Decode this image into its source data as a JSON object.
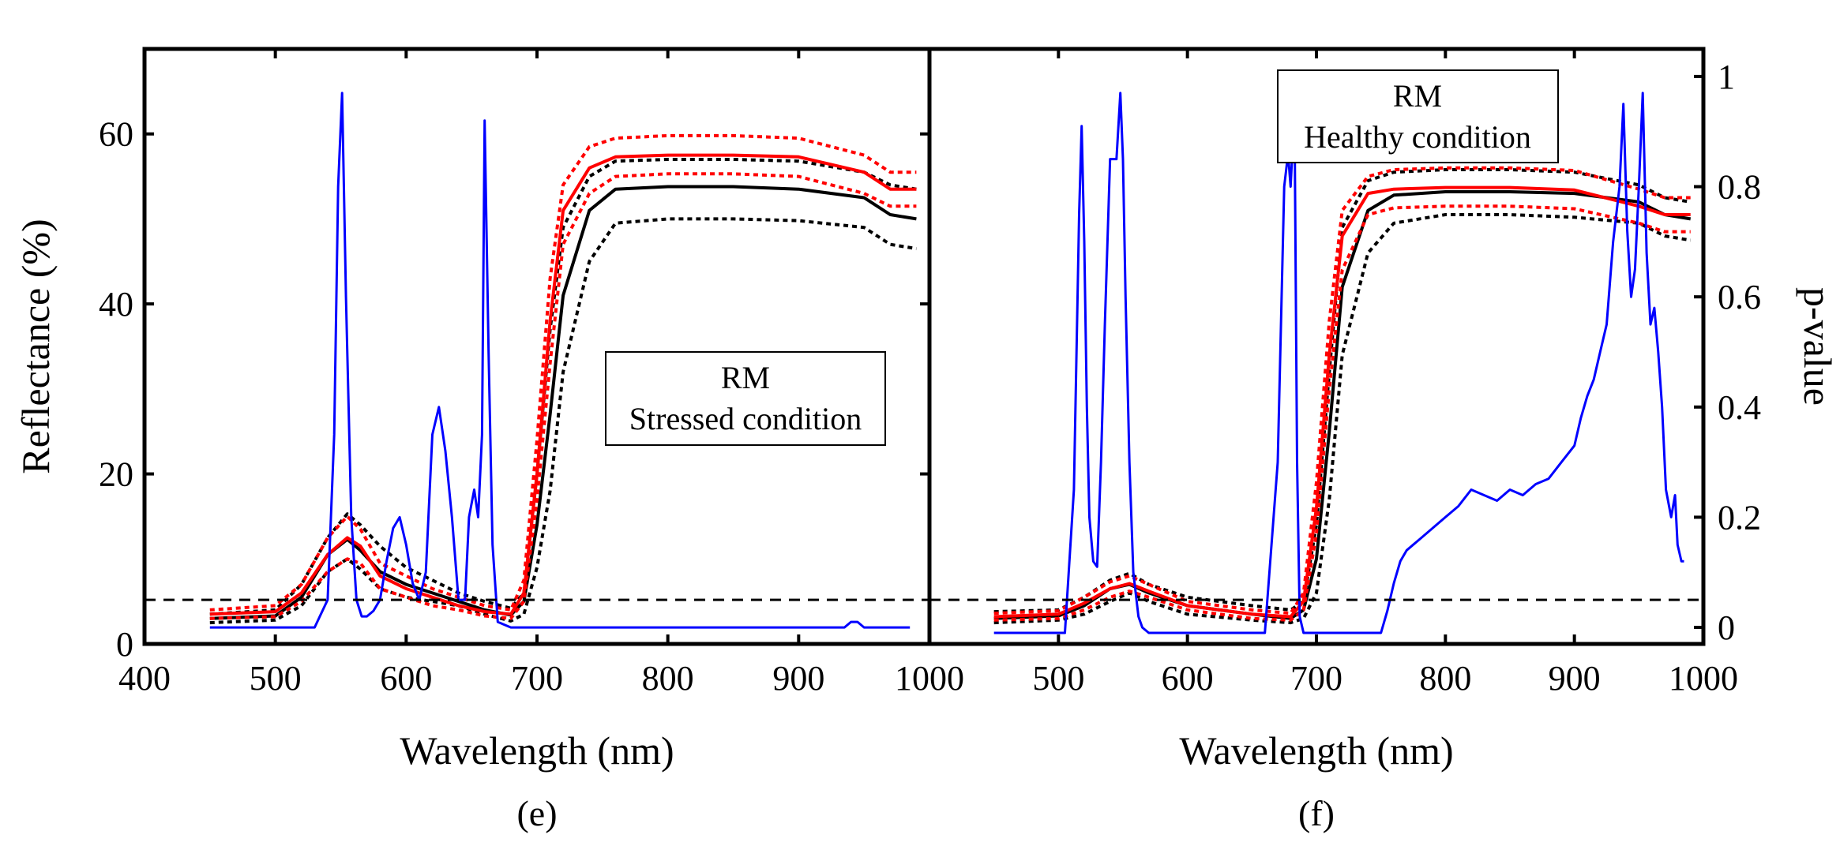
{
  "chart_data": [
    {
      "type": "line",
      "panel_label": "(e)",
      "xlabel": "Wavelength (nm)",
      "ylabel": "Reflectance (%)",
      "xlim": [
        400,
        1000
      ],
      "ylim": [
        0,
        70
      ],
      "xticks": [
        "400",
        "500",
        "600",
        "700",
        "800",
        "900",
        "1000"
      ],
      "yticks": [
        "0",
        "20",
        "40",
        "60"
      ],
      "y2label": "p-value",
      "y2lim": [
        -0.03,
        1.05
      ],
      "y2ticks": [
        "0",
        "0.2",
        "0.4",
        "0.6",
        "0.8",
        "1"
      ],
      "legend_box": [
        "RM",
        "Stressed condition"
      ],
      "threshold_pvalue": 0.05,
      "series": [
        {
          "color": "#000000",
          "style": "solid",
          "axis": "left",
          "x": [
            450,
            500,
            520,
            540,
            555,
            565,
            580,
            600,
            620,
            640,
            660,
            680,
            690,
            700,
            710,
            720,
            740,
            760,
            800,
            850,
            900,
            950,
            970,
            990
          ],
          "y": [
            3,
            3.3,
            5.5,
            10.5,
            12.3,
            11,
            8.5,
            7,
            6,
            5,
            4,
            3.4,
            5,
            14,
            27,
            41,
            51,
            53.5,
            53.8,
            53.8,
            53.5,
            52.5,
            50.5,
            50
          ]
        },
        {
          "color": "#000000",
          "style": "dotted",
          "axis": "left",
          "x": [
            450,
            500,
            520,
            540,
            555,
            565,
            580,
            600,
            620,
            640,
            660,
            680,
            690,
            700,
            710,
            720,
            740,
            760,
            800,
            850,
            900,
            950,
            970,
            990
          ],
          "y": [
            3.5,
            4,
            7,
            12.5,
            15.3,
            14,
            11.5,
            9,
            7.5,
            6,
            5,
            4.2,
            6,
            20,
            37,
            49,
            55,
            56.8,
            57,
            57,
            56.8,
            55.5,
            54,
            53.5
          ]
        },
        {
          "color": "#000000",
          "style": "dotted",
          "axis": "left",
          "x": [
            450,
            500,
            520,
            540,
            555,
            565,
            580,
            600,
            620,
            640,
            660,
            680,
            690,
            700,
            710,
            720,
            740,
            760,
            800,
            850,
            900,
            950,
            970,
            990
          ],
          "y": [
            2.5,
            2.8,
            4.5,
            8.5,
            10,
            8.8,
            6.5,
            5.5,
            5,
            4.5,
            3.5,
            2.7,
            3.5,
            9,
            18,
            32,
            45,
            49.5,
            50,
            50,
            49.8,
            49,
            47,
            46.5
          ]
        },
        {
          "color": "#ff0000",
          "style": "solid",
          "axis": "left",
          "x": [
            450,
            500,
            520,
            540,
            555,
            565,
            580,
            600,
            620,
            640,
            660,
            680,
            690,
            700,
            710,
            720,
            740,
            760,
            800,
            850,
            900,
            950,
            970,
            990
          ],
          "y": [
            3.5,
            3.8,
            6,
            10.5,
            12.5,
            11.5,
            8,
            6.5,
            5.5,
            4.5,
            3.8,
            3.5,
            6,
            20,
            38,
            51,
            56,
            57.3,
            57.5,
            57.5,
            57.3,
            55.5,
            53.5,
            53.5
          ]
        },
        {
          "color": "#ff0000",
          "style": "dotted",
          "axis": "left",
          "x": [
            450,
            500,
            520,
            540,
            555,
            565,
            580,
            600,
            620,
            640,
            660,
            680,
            690,
            700,
            710,
            720,
            740,
            760,
            800,
            850,
            900,
            950,
            970,
            990
          ],
          "y": [
            4,
            4.5,
            7,
            12.5,
            15,
            13.5,
            9.5,
            8,
            6.5,
            5.5,
            4.5,
            4,
            7.5,
            24,
            43,
            54,
            58.5,
            59.5,
            59.8,
            59.8,
            59.5,
            57.5,
            55.5,
            55.5
          ]
        },
        {
          "color": "#ff0000",
          "style": "dotted",
          "axis": "left",
          "x": [
            450,
            500,
            520,
            540,
            555,
            565,
            580,
            600,
            620,
            640,
            660,
            680,
            690,
            700,
            710,
            720,
            740,
            760,
            800,
            850,
            900,
            950,
            970,
            990
          ],
          "y": [
            3,
            3.2,
            5,
            8.5,
            10,
            9.5,
            6.5,
            5.5,
            4.5,
            4,
            3.3,
            3,
            5,
            17,
            33,
            47,
            53,
            55,
            55.3,
            55.3,
            55,
            53,
            51.5,
            51.5
          ]
        },
        {
          "color": "#0000ff",
          "style": "solid",
          "axis": "right",
          "x": [
            450,
            530,
            540,
            545,
            548,
            551,
            554,
            558,
            562,
            566,
            570,
            575,
            580,
            585,
            590,
            595,
            600,
            605,
            610,
            615,
            620,
            625,
            630,
            635,
            640,
            645,
            648,
            652,
            655,
            658,
            660,
            663,
            666,
            670,
            680,
            700,
            800,
            900,
            935,
            940,
            945,
            950,
            960,
            985
          ],
          "y": [
            0,
            0,
            0.05,
            0.35,
            0.8,
            0.97,
            0.6,
            0.2,
            0.05,
            0.02,
            0.02,
            0.03,
            0.05,
            0.12,
            0.18,
            0.2,
            0.15,
            0.08,
            0.05,
            0.1,
            0.35,
            0.4,
            0.32,
            0.2,
            0.05,
            0.05,
            0.2,
            0.25,
            0.2,
            0.35,
            0.92,
            0.5,
            0.15,
            0.01,
            0,
            0,
            0,
            0,
            0,
            0.01,
            0.01,
            0,
            0,
            0
          ]
        }
      ]
    },
    {
      "type": "line",
      "panel_label": "(f)",
      "xlabel": "Wavelength (nm)",
      "ylabel": "Reflectance (%)",
      "xlim": [
        400,
        1000
      ],
      "ylim": [
        0,
        70
      ],
      "xticks": [
        "500",
        "600",
        "700",
        "800",
        "900",
        "1000"
      ],
      "y2label": "p-value",
      "y2lim": [
        -0.03,
        1.05
      ],
      "y2ticks": [
        "0",
        "0.2",
        "0.4",
        "0.6",
        "0.8",
        "1"
      ],
      "legend_box": [
        "RM",
        "Healthy condition"
      ],
      "threshold_pvalue": 0.05,
      "series": [
        {
          "color": "#000000",
          "style": "solid",
          "axis": "left",
          "x": [
            450,
            500,
            520,
            540,
            555,
            570,
            600,
            650,
            680,
            690,
            700,
            710,
            720,
            740,
            760,
            800,
            850,
            900,
            950,
            970,
            990
          ],
          "y": [
            3,
            3.3,
            4.5,
            6.5,
            7,
            6,
            4.5,
            3.5,
            3,
            4,
            10,
            25,
            42,
            51,
            52.8,
            53.2,
            53.2,
            53,
            52,
            50.5,
            50
          ]
        },
        {
          "color": "#000000",
          "style": "dotted",
          "axis": "left",
          "x": [
            450,
            500,
            520,
            540,
            555,
            570,
            600,
            650,
            680,
            690,
            700,
            710,
            720,
            740,
            760,
            800,
            850,
            900,
            950,
            970,
            990
          ],
          "y": [
            3.8,
            4,
            5.5,
            7.5,
            8.3,
            7,
            5.5,
            4.5,
            4,
            5,
            14,
            32,
            49,
            54.5,
            55.5,
            55.8,
            55.8,
            55.5,
            54,
            52.5,
            52
          ]
        },
        {
          "color": "#000000",
          "style": "dotted",
          "axis": "left",
          "x": [
            450,
            500,
            520,
            540,
            555,
            570,
            600,
            650,
            680,
            690,
            700,
            710,
            720,
            740,
            760,
            800,
            850,
            900,
            950,
            970,
            990
          ],
          "y": [
            2.5,
            2.8,
            3.5,
            5,
            6,
            5,
            3.5,
            2.8,
            2.5,
            3,
            6,
            17,
            34,
            46,
            49.5,
            50.5,
            50.5,
            50.2,
            49.5,
            48,
            47.5
          ]
        },
        {
          "color": "#ff0000",
          "style": "solid",
          "axis": "left",
          "x": [
            450,
            500,
            520,
            540,
            555,
            570,
            600,
            650,
            680,
            690,
            700,
            710,
            720,
            740,
            760,
            800,
            850,
            900,
            950,
            970,
            990
          ],
          "y": [
            3.2,
            3.5,
            4.8,
            6.5,
            7.1,
            6.2,
            4.5,
            3.5,
            3.2,
            5,
            16,
            34,
            48,
            53,
            53.5,
            53.7,
            53.7,
            53.4,
            51.5,
            50.5,
            50.5
          ]
        },
        {
          "color": "#ff0000",
          "style": "dotted",
          "axis": "left",
          "x": [
            450,
            500,
            520,
            540,
            555,
            570,
            600,
            650,
            680,
            690,
            700,
            710,
            720,
            740,
            760,
            800,
            850,
            900,
            950,
            970,
            990
          ],
          "y": [
            3.6,
            3.9,
            5.5,
            7.3,
            8,
            7,
            5,
            4,
            3.6,
            6,
            19,
            38,
            51,
            55,
            55.8,
            56,
            56,
            55.7,
            53.5,
            52.5,
            52.5
          ]
        },
        {
          "color": "#ff0000",
          "style": "dotted",
          "axis": "left",
          "x": [
            450,
            500,
            520,
            540,
            555,
            570,
            600,
            650,
            680,
            690,
            700,
            710,
            720,
            740,
            760,
            800,
            850,
            900,
            950,
            970,
            990
          ],
          "y": [
            2.8,
            3,
            4,
            5.5,
            6.2,
            5.5,
            4,
            3,
            2.8,
            4,
            13,
            30,
            44,
            50.5,
            51.3,
            51.5,
            51.5,
            51.2,
            49.5,
            48.5,
            48.5
          ]
        },
        {
          "color": "#0000ff",
          "style": "solid",
          "axis": "right",
          "x": [
            450,
            505,
            512,
            516,
            518,
            520,
            522,
            524,
            527,
            530,
            533,
            536,
            540,
            545,
            548,
            550,
            552,
            555,
            558,
            562,
            565,
            570,
            600,
            660,
            670,
            675,
            678,
            680,
            683,
            685,
            687,
            690,
            750,
            755,
            760,
            765,
            770,
            775,
            780,
            790,
            800,
            810,
            820,
            830,
            840,
            850,
            860,
            870,
            880,
            890,
            900,
            905,
            910,
            915,
            920,
            925,
            930,
            935,
            938,
            941,
            944,
            947,
            950,
            953,
            956,
            959,
            962,
            965,
            968,
            971,
            975,
            978,
            980,
            983,
            985
          ],
          "y": [
            -0.01,
            -0.01,
            0.25,
            0.75,
            0.91,
            0.7,
            0.4,
            0.2,
            0.12,
            0.11,
            0.3,
            0.55,
            0.85,
            0.85,
            0.97,
            0.85,
            0.6,
            0.3,
            0.1,
            0.02,
            0,
            -0.01,
            -0.01,
            -0.01,
            0.3,
            0.8,
            0.86,
            0.8,
            0.94,
            0.3,
            0.02,
            -0.01,
            -0.01,
            0.03,
            0.08,
            0.12,
            0.14,
            0.15,
            0.16,
            0.18,
            0.2,
            0.22,
            0.25,
            0.24,
            0.23,
            0.25,
            0.24,
            0.26,
            0.27,
            0.3,
            0.33,
            0.38,
            0.42,
            0.45,
            0.5,
            0.55,
            0.7,
            0.8,
            0.95,
            0.72,
            0.6,
            0.65,
            0.8,
            0.97,
            0.68,
            0.55,
            0.58,
            0.5,
            0.4,
            0.25,
            0.2,
            0.24,
            0.15,
            0.12,
            0.12
          ]
        }
      ]
    }
  ]
}
